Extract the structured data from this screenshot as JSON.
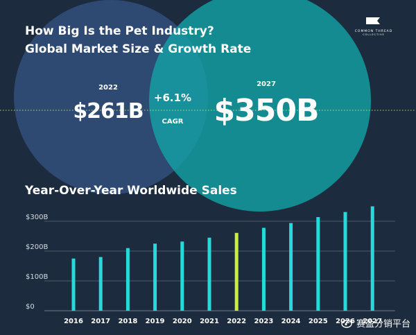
{
  "header": {
    "title_line1": "How Big Is the Pet Industry?",
    "title_line2": "Global Market Size & Growth Rate"
  },
  "logo": {
    "line1": "COMMON THREAD",
    "line2": "COLLECTIVE"
  },
  "market": {
    "left_year": "2022",
    "left_value": "$261B",
    "right_year": "2027",
    "right_value": "$350B",
    "cagr_value": "+6.1%",
    "cagr_label": "CAGR"
  },
  "colors": {
    "background": "#1c2b3d",
    "left_circle": "#2e4a73",
    "right_circle": "#13a3a6",
    "bar": "#27dada",
    "bar_highlight": "#c8f03a",
    "dotted_line": "#b8e85a"
  },
  "chart_data": {
    "type": "bar",
    "title": "Year-Over-Year Worldwide Sales",
    "categories": [
      "2016",
      "2017",
      "2018",
      "2019",
      "2020",
      "2021",
      "2022",
      "2023",
      "2024",
      "2025",
      "2026",
      "2027"
    ],
    "values": [
      175,
      180,
      210,
      225,
      232,
      245,
      261,
      278,
      294,
      314,
      331,
      350
    ],
    "highlight_category": "2022",
    "y_ticks": [
      "$0",
      "$100B",
      "$200B",
      "$300B"
    ],
    "ylim": [
      0,
      350
    ],
    "grid": true
  },
  "watermark": {
    "text": "赛盈分销平台"
  }
}
